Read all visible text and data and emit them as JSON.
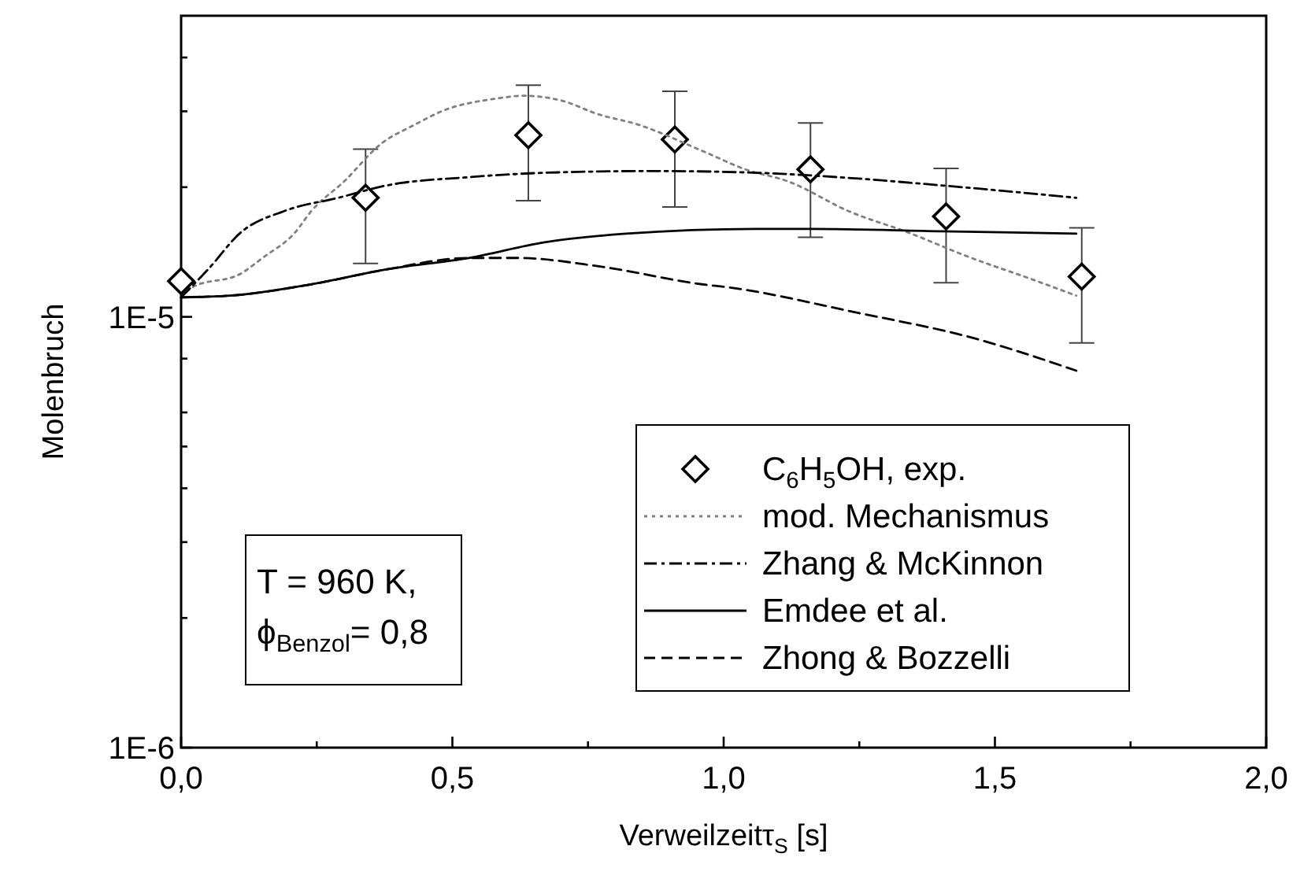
{
  "chart_data": {
    "type": "line",
    "xlabel": "Verweilzeitτ$_{S}$ [s]",
    "ylabel": "Molenbruch",
    "log": "y",
    "xlim": [
      0,
      2
    ],
    "ylim": [
      1e-06,
      5e-05
    ],
    "xticks": [
      {
        "value": 0,
        "label": "0,0"
      },
      {
        "value": 0.25,
        "label": null
      },
      {
        "value": 0.5,
        "label": "0,5"
      },
      {
        "value": 0.75,
        "label": null
      },
      {
        "value": 1,
        "label": "1,0"
      },
      {
        "value": 1.25,
        "label": null
      },
      {
        "value": 1.5,
        "label": "1,5"
      },
      {
        "value": 1.75,
        "label": null
      },
      {
        "value": 2,
        "label": "2,0"
      }
    ],
    "yticks": [
      {
        "value": 1e-06,
        "label": "1E-6"
      },
      {
        "value": 2e-06,
        "label": null
      },
      {
        "value": 3e-06,
        "label": null
      },
      {
        "value": 4e-06,
        "label": null
      },
      {
        "value": 5e-06,
        "label": null
      },
      {
        "value": 6e-06,
        "label": null
      },
      {
        "value": 8e-06,
        "label": null
      },
      {
        "value": 1e-05,
        "label": "1E-5"
      },
      {
        "value": 2e-05,
        "label": null
      },
      {
        "value": 3e-05,
        "label": null
      },
      {
        "value": 4e-05,
        "label": null
      }
    ],
    "legend": "bottom right",
    "grid": false,
    "annotations": [
      "T = 960 K,",
      "ϕ$_{Benzol}$= 0,8"
    ],
    "series": [
      {
        "name": "C$_{6}$H$_{5}$OH, exp.",
        "type": "scatter",
        "marker": "diamond",
        "color": "#000000",
        "x": [
          0,
          0.34,
          0.64,
          0.91,
          1.16,
          1.41,
          1.66
        ],
        "values": [
          1.21e-05,
          1.89e-05,
          2.64e-05,
          2.58e-05,
          2.2e-05,
          1.71e-05,
          1.24e-05
        ],
        "errors": [
          null,
          [
            1.33e-05,
            2.45e-05
          ],
          [
            1.86e-05,
            3.45e-05
          ],
          [
            1.8e-05,
            3.34e-05
          ],
          [
            1.53e-05,
            2.82e-05
          ],
          [
            1.2e-05,
            2.21e-05
          ],
          [
            8.7e-06,
            1.61e-05
          ]
        ]
      },
      {
        "name": "mod. Mechanismus",
        "line_style": "dotted",
        "color": "#808080",
        "x": [
          0,
          0.02,
          0.11,
          0.15,
          0.21,
          0.24,
          0.3,
          0.37,
          0.43,
          0.48,
          0.58,
          0.63,
          0.7,
          0.77,
          0.84,
          0.96,
          1.04,
          1.12,
          1.23,
          1.34,
          1.45,
          1.57,
          1.65
        ],
        "values": [
          1.11e-05,
          1.17e-05,
          1.26e-05,
          1.37e-05,
          1.57e-05,
          1.76e-05,
          2.06e-05,
          2.53e-05,
          2.79e-05,
          3e-05,
          3.21e-05,
          3.26e-05,
          3.18e-05,
          2.95e-05,
          2.8e-05,
          2.43e-05,
          2.2e-05,
          2.06e-05,
          1.76e-05,
          1.57e-05,
          1.38e-05,
          1.22e-05,
          1.12e-05
        ]
      },
      {
        "name": "Zhang & McKinnon",
        "line_style": "dashdot",
        "color": "#000000",
        "x": [
          0,
          0.05,
          0.11,
          0.19,
          0.29,
          0.38,
          0.53,
          0.67,
          0.87,
          1.06,
          1.21,
          1.4,
          1.65
        ],
        "values": [
          1.11e-05,
          1.29e-05,
          1.57e-05,
          1.76e-05,
          1.89e-05,
          2.02e-05,
          2.11e-05,
          2.16e-05,
          2.18e-05,
          2.16e-05,
          2.11e-05,
          2.02e-05,
          1.89e-05
        ]
      },
      {
        "name": "Emdee et al.",
        "line_style": "solid",
        "color": "#000000",
        "x": [
          0,
          0.09,
          0.24,
          0.38,
          0.53,
          0.67,
          0.82,
          1.06,
          1.16,
          1.4,
          1.65
        ],
        "values": [
          1.11e-05,
          1.12e-05,
          1.19e-05,
          1.29e-05,
          1.37e-05,
          1.49e-05,
          1.56e-05,
          1.6e-05,
          1.6e-05,
          1.58e-05,
          1.56e-05
        ]
      },
      {
        "name": "Zhong & Bozzelli",
        "line_style": "dashed",
        "color": "#000000",
        "x": [
          0,
          0.09,
          0.24,
          0.38,
          0.53,
          0.62,
          0.77,
          0.96,
          1.01,
          1.25,
          1.45,
          1.65
        ],
        "values": [
          1.11e-05,
          1.12e-05,
          1.19e-05,
          1.29e-05,
          1.37e-05,
          1.37e-05,
          1.31e-05,
          1.19e-05,
          1.17e-05,
          1.02e-05,
          9e-06,
          7.5e-06
        ]
      }
    ]
  }
}
